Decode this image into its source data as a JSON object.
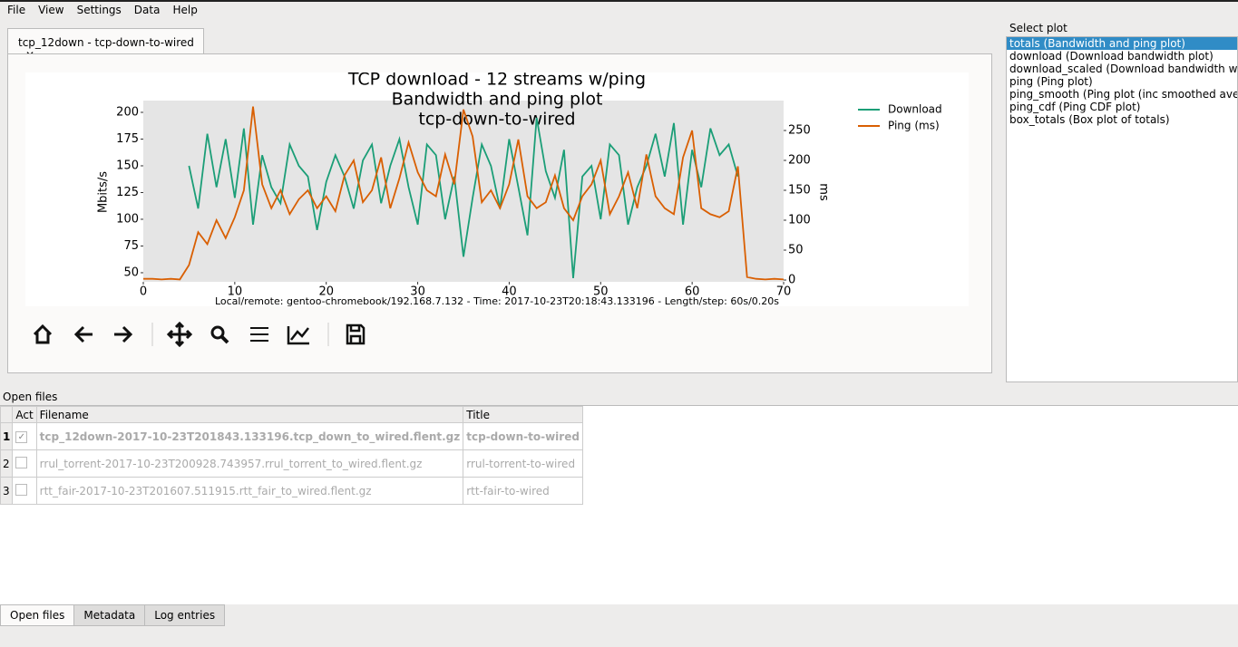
{
  "menu": [
    "File",
    "View",
    "Settings",
    "Data",
    "Help"
  ],
  "tab": "tcp_12down - tcp-down-to-wired",
  "chart_data": {
    "type": "line",
    "title": [
      "TCP download - 12 streams w/ping",
      "Bandwidth and ping plot",
      "tcp-down-to-wired"
    ],
    "footer": "Local/remote: gentoo-chromebook/192.168.7.132 - Time: 2017-10-23T20:18:43.133196 - Length/step: 60s/0.20s",
    "y_label": "Mbits/s",
    "y2_label": "ms",
    "x": [
      0,
      1,
      2,
      3,
      4,
      5,
      6,
      7,
      8,
      9,
      10,
      11,
      12,
      13,
      14,
      15,
      16,
      17,
      18,
      19,
      20,
      21,
      22,
      23,
      24,
      25,
      26,
      27,
      28,
      29,
      30,
      31,
      32,
      33,
      34,
      35,
      36,
      37,
      38,
      39,
      40,
      41,
      42,
      43,
      44,
      45,
      46,
      47,
      48,
      49,
      50,
      51,
      52,
      53,
      54,
      55,
      56,
      57,
      58,
      59,
      60,
      61,
      62,
      63,
      64,
      65,
      66,
      67,
      68,
      69,
      70
    ],
    "series": [
      {
        "name": "Download",
        "color": "#1b9e77",
        "axis": "y",
        "values": [
          null,
          null,
          null,
          null,
          null,
          150,
          110,
          180,
          130,
          175,
          120,
          185,
          95,
          160,
          130,
          115,
          170,
          150,
          140,
          90,
          135,
          160,
          140,
          110,
          155,
          170,
          115,
          150,
          175,
          130,
          95,
          170,
          160,
          100,
          140,
          65,
          120,
          170,
          150,
          110,
          175,
          130,
          85,
          195,
          145,
          120,
          165,
          45,
          140,
          150,
          100,
          170,
          160,
          95,
          130,
          150,
          180,
          140,
          190,
          95,
          165,
          130,
          185,
          160,
          170,
          140,
          null,
          null,
          null,
          null,
          null
        ]
      },
      {
        "name": "Ping (ms)",
        "color": "#d95f02",
        "axis": "y2",
        "values": [
          2,
          2,
          1,
          2,
          1,
          25,
          80,
          60,
          100,
          70,
          105,
          150,
          290,
          160,
          120,
          150,
          110,
          135,
          150,
          120,
          140,
          115,
          175,
          200,
          130,
          150,
          205,
          120,
          170,
          230,
          180,
          150,
          140,
          210,
          160,
          285,
          240,
          130,
          150,
          120,
          160,
          235,
          140,
          120,
          130,
          175,
          120,
          100,
          140,
          160,
          200,
          110,
          140,
          180,
          120,
          210,
          140,
          120,
          110,
          205,
          250,
          120,
          110,
          105,
          115,
          190,
          5,
          2,
          1,
          2,
          1
        ]
      }
    ],
    "xlim": [
      0,
      70
    ],
    "xticks": [
      0,
      10,
      20,
      30,
      40,
      50,
      60,
      70
    ],
    "ylim": [
      41.5,
      211
    ],
    "yticks": [
      50,
      75,
      100,
      125,
      150,
      175,
      200
    ],
    "y2lim": [
      -3,
      300
    ],
    "y2ticks": [
      0,
      50,
      100,
      150,
      200,
      250
    ],
    "grid": false,
    "legend": "right"
  },
  "select_plot": {
    "title": "Select plot",
    "selected": 0,
    "items": [
      "totals (Bandwidth and ping plot)",
      "download (Download bandwidth plot)",
      "download_scaled (Download bandwidth w/axes scaled to remove outliers)",
      "ping (Ping plot)",
      "ping_smooth (Ping plot (inc smoothed average))",
      "ping_cdf (Ping CDF plot)",
      "box_totals (Box plot of totals)"
    ]
  },
  "open_files": {
    "title": "Open files",
    "columns": [
      "Act",
      "Filename",
      "Title"
    ],
    "rows": [
      {
        "number": "1",
        "active": true,
        "filename": "tcp_12down-2017-10-23T201843.133196.tcp_down_to_wired.flent.gz",
        "title": "tcp-down-to-wired"
      },
      {
        "number": "2",
        "active": false,
        "filename": "rrul_torrent-2017-10-23T200928.743957.rrul_torrent_to_wired.flent.gz",
        "title": "rrul-torrent-to-wired"
      },
      {
        "number": "3",
        "active": false,
        "filename": "rtt_fair-2017-10-23T201607.511915.rtt_fair_to_wired.flent.gz",
        "title": "rtt-fair-to-wired"
      }
    ]
  },
  "bottom_tabs": [
    "Open files",
    "Metadata",
    "Log entries"
  ]
}
